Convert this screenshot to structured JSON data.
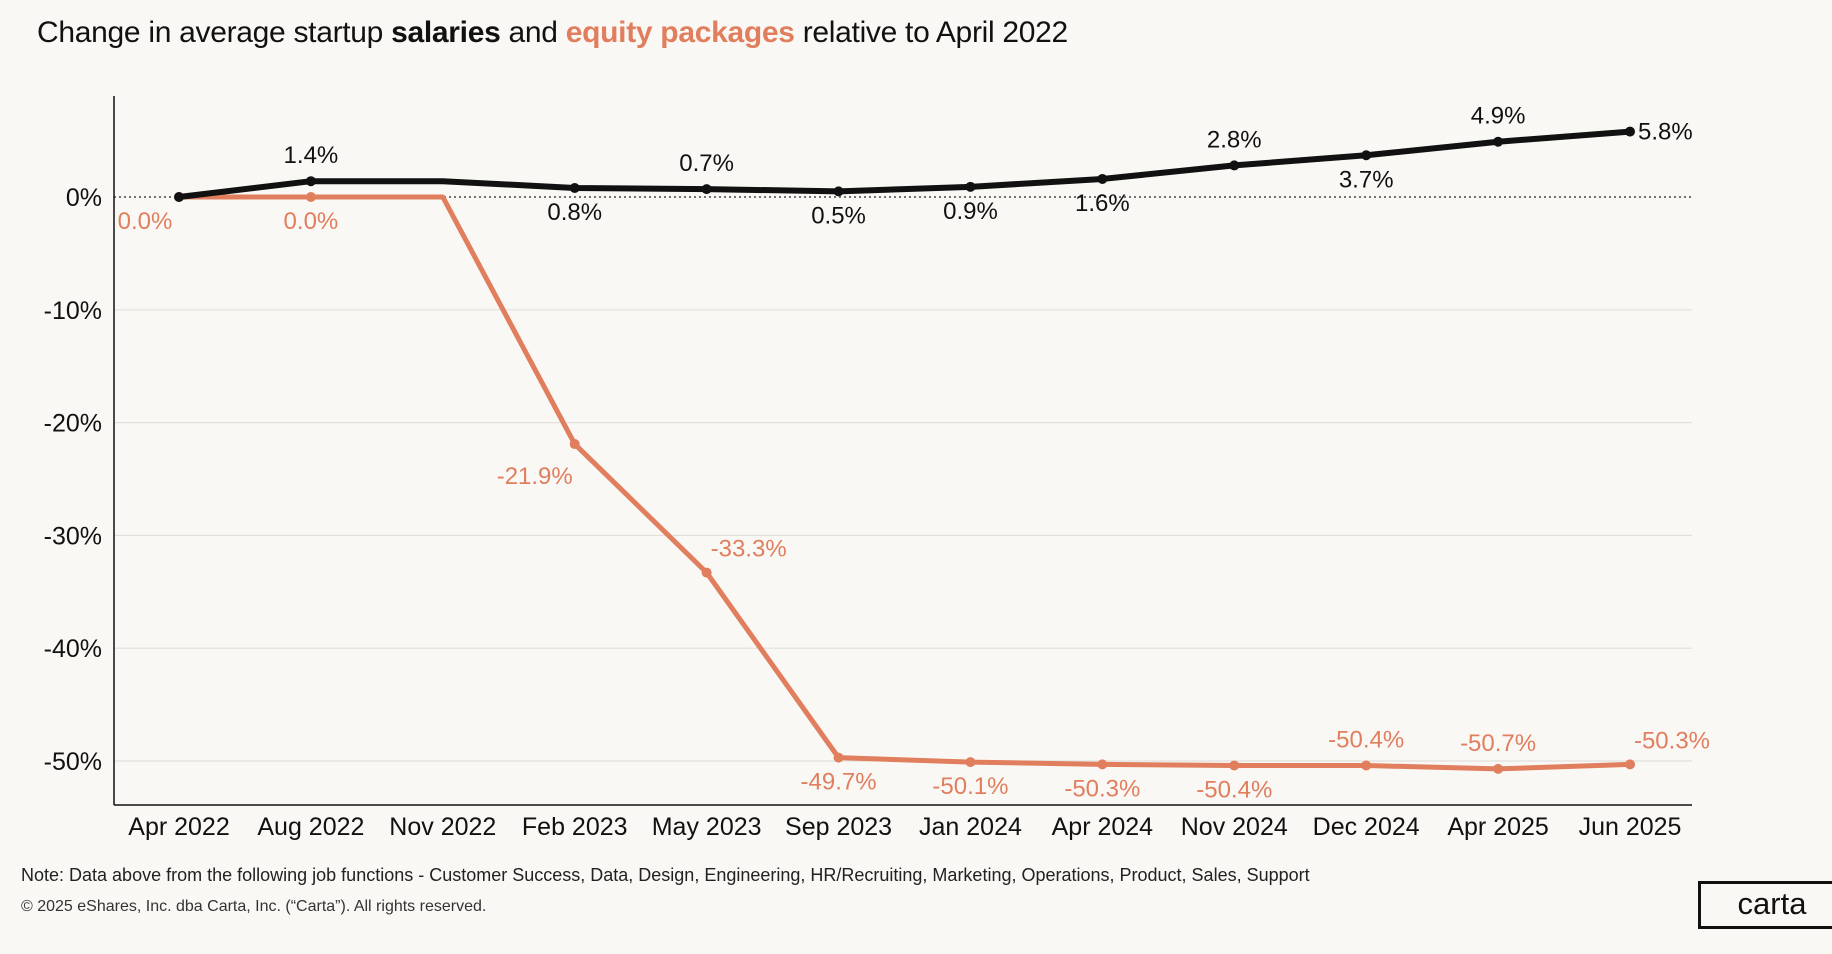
{
  "title": {
    "prefix": "Change in average startup ",
    "salaries": "salaries",
    "middle": " and ",
    "equity": "equity packages",
    "suffix": " relative to April 2022"
  },
  "chart_data": {
    "type": "line",
    "title": "Change in average startup salaries and equity packages relative to April 2022",
    "categories": [
      "Apr 2022",
      "Aug 2022",
      "Nov 2022",
      "Feb 2023",
      "May 2023",
      "Sep 2023",
      "Jan 2024",
      "Apr 2024",
      "Nov 2024",
      "Dec 2024",
      "Apr 2025",
      "Jun 2025"
    ],
    "ylim": [
      -54,
      9
    ],
    "yticks": [
      0,
      -10,
      -20,
      -30,
      -40,
      -50
    ],
    "ytick_labels": [
      "0%",
      "-10%",
      "-20%",
      "-30%",
      "-40%",
      "-50%"
    ],
    "grid": true,
    "zero_line": "dotted",
    "series": [
      {
        "name": "salaries",
        "color": "#111111",
        "values": [
          0,
          1.4,
          1.4,
          0.8,
          0.7,
          0.5,
          0.9,
          1.6,
          2.8,
          3.7,
          4.9,
          5.8
        ],
        "markers": [
          true,
          true,
          false,
          true,
          true,
          true,
          true,
          true,
          true,
          true,
          true,
          true
        ],
        "labels": [
          "",
          "1.4%",
          "",
          "0.8%",
          "0.7%",
          "0.5%",
          "0.9%",
          "1.6%",
          "2.8%",
          "3.7%",
          "4.9%",
          "5.8%"
        ],
        "label_pos": [
          "",
          "above",
          "",
          "below",
          "above",
          "below",
          "below",
          "below",
          "above",
          "below",
          "above",
          "right"
        ]
      },
      {
        "name": "equity packages",
        "color": "#e07e5e",
        "values": [
          0,
          0,
          0,
          -21.9,
          -33.3,
          -49.7,
          -50.1,
          -50.3,
          -50.4,
          -50.4,
          -50.7,
          -50.3
        ],
        "markers": [
          true,
          true,
          false,
          true,
          true,
          true,
          true,
          true,
          true,
          true,
          true,
          true
        ],
        "labels": [
          "0.0%",
          "0.0%",
          "",
          "-21.9%",
          "-33.3%",
          "-49.7%",
          "-50.1%",
          "-50.3%",
          "-50.4%",
          "-50.4%",
          "-50.7%",
          "-50.3%"
        ],
        "label_pos": [
          "below-left",
          "below",
          "",
          "left",
          "above-right",
          "below",
          "below",
          "below",
          "below",
          "above",
          "above",
          "above-right"
        ]
      }
    ]
  },
  "footer": {
    "note": "Note:  Data above from the following job functions - Customer Success, Data, Design, Engineering, HR/Recruiting, Marketing, Operations, Product,  Sales, Support",
    "copyright": "© 2025 eShares, Inc. dba Carta, Inc. (“Carta”). All rights reserved.",
    "logo": "carta"
  }
}
